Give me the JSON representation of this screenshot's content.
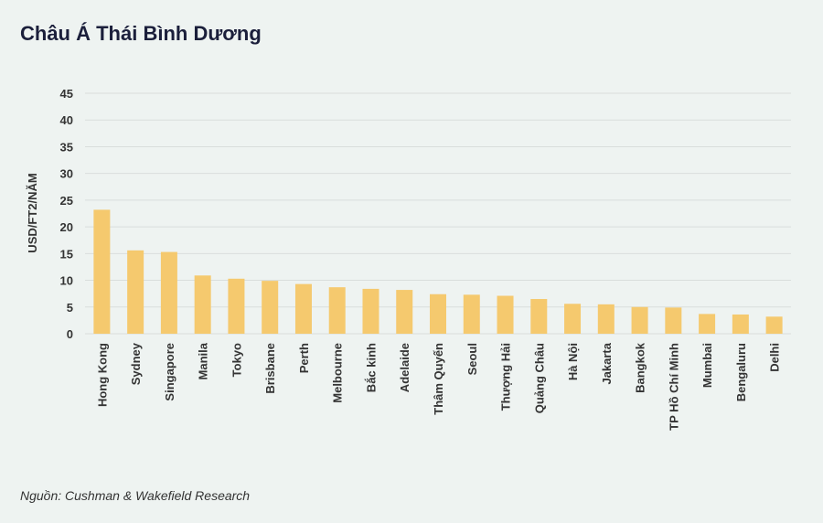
{
  "title": "Châu Á Thái Bình Dương",
  "source": "Nguồn: Cushman & Wakefield Research",
  "colors": {
    "bar": "#f5c96e",
    "grid": "#d9dedc",
    "background": "#eef3f1"
  },
  "chart_data": {
    "type": "bar",
    "title": "Châu Á Thái Bình Dương",
    "xlabel": "",
    "ylabel": "USD/FT2/NĂM",
    "ylim": [
      0,
      45
    ],
    "yticks": [
      0,
      5,
      10,
      15,
      20,
      25,
      30,
      35,
      40,
      45
    ],
    "grid": true,
    "categories": [
      "Hong Kong",
      "Sydney",
      "Singapore",
      "Manila",
      "Tokyo",
      "Brisbane",
      "Perth",
      "Melbourne",
      "Bắc kinh",
      "Adelaide",
      "Thâm Quyến",
      "Seoul",
      "Thượng Hải",
      "Quảng Châu",
      "Hà Nội",
      "Jakarta",
      "Bangkok",
      "TP Hồ Chí Minh",
      "Mumbai",
      "Bengaluru",
      "Delhi"
    ],
    "values": [
      23.2,
      15.6,
      15.3,
      10.9,
      10.3,
      9.9,
      9.3,
      8.7,
      8.4,
      8.2,
      7.4,
      7.3,
      7.1,
      6.5,
      5.6,
      5.5,
      5.0,
      4.9,
      3.7,
      3.6,
      3.2
    ]
  }
}
